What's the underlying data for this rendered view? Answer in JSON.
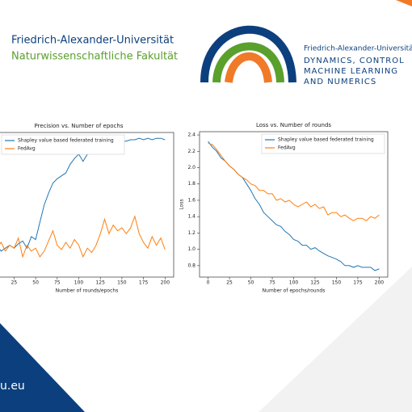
{
  "header": {
    "university": "Friedrich-Alexander-Universität",
    "faculty": "Naturwissenschaftliche Fakultät",
    "group_university": "Friedrich-Alexander-Universitä",
    "group_lines": [
      "DYNAMICS, CONTROL",
      "MACHINE LEARNING",
      "AND NUMERICS"
    ]
  },
  "footer": {
    "url": "u.eu"
  },
  "chart_data": [
    {
      "type": "line",
      "title": "Precision vs. Number of epochs",
      "x_label": "Number of rounds/epochs",
      "x": [
        0,
        5,
        10,
        15,
        20,
        25,
        30,
        35,
        40,
        45,
        50,
        55,
        60,
        65,
        70,
        75,
        80,
        85,
        90,
        95,
        100,
        105,
        110,
        115,
        120,
        125,
        130,
        135,
        140,
        145,
        150,
        155,
        160,
        165,
        170,
        175,
        180,
        185,
        190,
        195,
        200
      ],
      "series": [
        {
          "name": "Shapley value based federated training",
          "color": "#1f77b4",
          "values": [
            0.2,
            0.22,
            0.18,
            0.2,
            0.22,
            0.2,
            0.23,
            0.25,
            0.2,
            0.28,
            0.26,
            0.38,
            0.5,
            0.58,
            0.65,
            0.68,
            0.7,
            0.72,
            0.78,
            0.82,
            0.85,
            0.8,
            0.85,
            0.86,
            0.88,
            0.87,
            0.9,
            0.91,
            0.92,
            0.93,
            0.94,
            0.94,
            0.95,
            0.95,
            0.96,
            0.95,
            0.96,
            0.95,
            0.96,
            0.96,
            0.95
          ]
        },
        {
          "name": "FedAvg",
          "color": "#ff7f0e",
          "values": [
            0.2,
            0.2,
            0.24,
            0.18,
            0.22,
            0.2,
            0.27,
            0.14,
            0.22,
            0.18,
            0.2,
            0.14,
            0.18,
            0.25,
            0.32,
            0.22,
            0.19,
            0.24,
            0.2,
            0.26,
            0.22,
            0.14,
            0.2,
            0.17,
            0.22,
            0.3,
            0.4,
            0.3,
            0.36,
            0.32,
            0.34,
            0.3,
            0.34,
            0.42,
            0.3,
            0.24,
            0.2,
            0.28,
            0.22,
            0.27,
            0.19
          ]
        }
      ],
      "xlim": [
        -10,
        210
      ],
      "xticks": [
        25,
        50,
        75,
        100,
        125,
        150,
        175,
        200
      ],
      "ylim": [
        0,
        1
      ],
      "legend": "upper left"
    },
    {
      "type": "line",
      "title": "Loss vs. Number of rounds",
      "x_label": "Number of epochs/rounds",
      "y_label": "Loss",
      "x": [
        0,
        5,
        10,
        15,
        20,
        25,
        30,
        35,
        40,
        45,
        50,
        55,
        60,
        65,
        70,
        75,
        80,
        85,
        90,
        95,
        100,
        105,
        110,
        115,
        120,
        125,
        130,
        135,
        140,
        145,
        150,
        155,
        160,
        165,
        170,
        175,
        180,
        185,
        190,
        195,
        200
      ],
      "series": [
        {
          "name": "Shapley value based federated training",
          "color": "#1f77b4",
          "values": [
            2.32,
            2.25,
            2.2,
            2.12,
            2.08,
            2.02,
            1.98,
            1.92,
            1.88,
            1.8,
            1.72,
            1.62,
            1.55,
            1.45,
            1.4,
            1.35,
            1.3,
            1.28,
            1.22,
            1.18,
            1.12,
            1.1,
            1.05,
            1.05,
            1.0,
            1.02,
            0.98,
            0.95,
            0.92,
            0.9,
            0.88,
            0.85,
            0.8,
            0.8,
            0.78,
            0.8,
            0.78,
            0.78,
            0.78,
            0.74,
            0.76
          ]
        },
        {
          "name": "FedAvg",
          "color": "#ff7f0e",
          "values": [
            2.3,
            2.28,
            2.22,
            2.15,
            2.08,
            2.02,
            1.98,
            1.92,
            1.88,
            1.85,
            1.8,
            1.78,
            1.72,
            1.72,
            1.68,
            1.68,
            1.6,
            1.62,
            1.58,
            1.6,
            1.55,
            1.52,
            1.55,
            1.58,
            1.52,
            1.55,
            1.5,
            1.52,
            1.42,
            1.45,
            1.45,
            1.4,
            1.42,
            1.38,
            1.35,
            1.38,
            1.38,
            1.35,
            1.4,
            1.38,
            1.42
          ]
        }
      ],
      "xlim": [
        -10,
        210
      ],
      "xticks": [
        0,
        25,
        50,
        75,
        100,
        125,
        150,
        175,
        200
      ],
      "ylim": [
        0.66,
        2.44
      ],
      "yticks": [
        0.8,
        {
          "value": 1,
          "label": "1.0"
        },
        1.2,
        1.4,
        1.6,
        1.8,
        {
          "value": 2,
          "label": "2.0"
        },
        2.2,
        2.4
      ],
      "legend": "upper right"
    }
  ]
}
